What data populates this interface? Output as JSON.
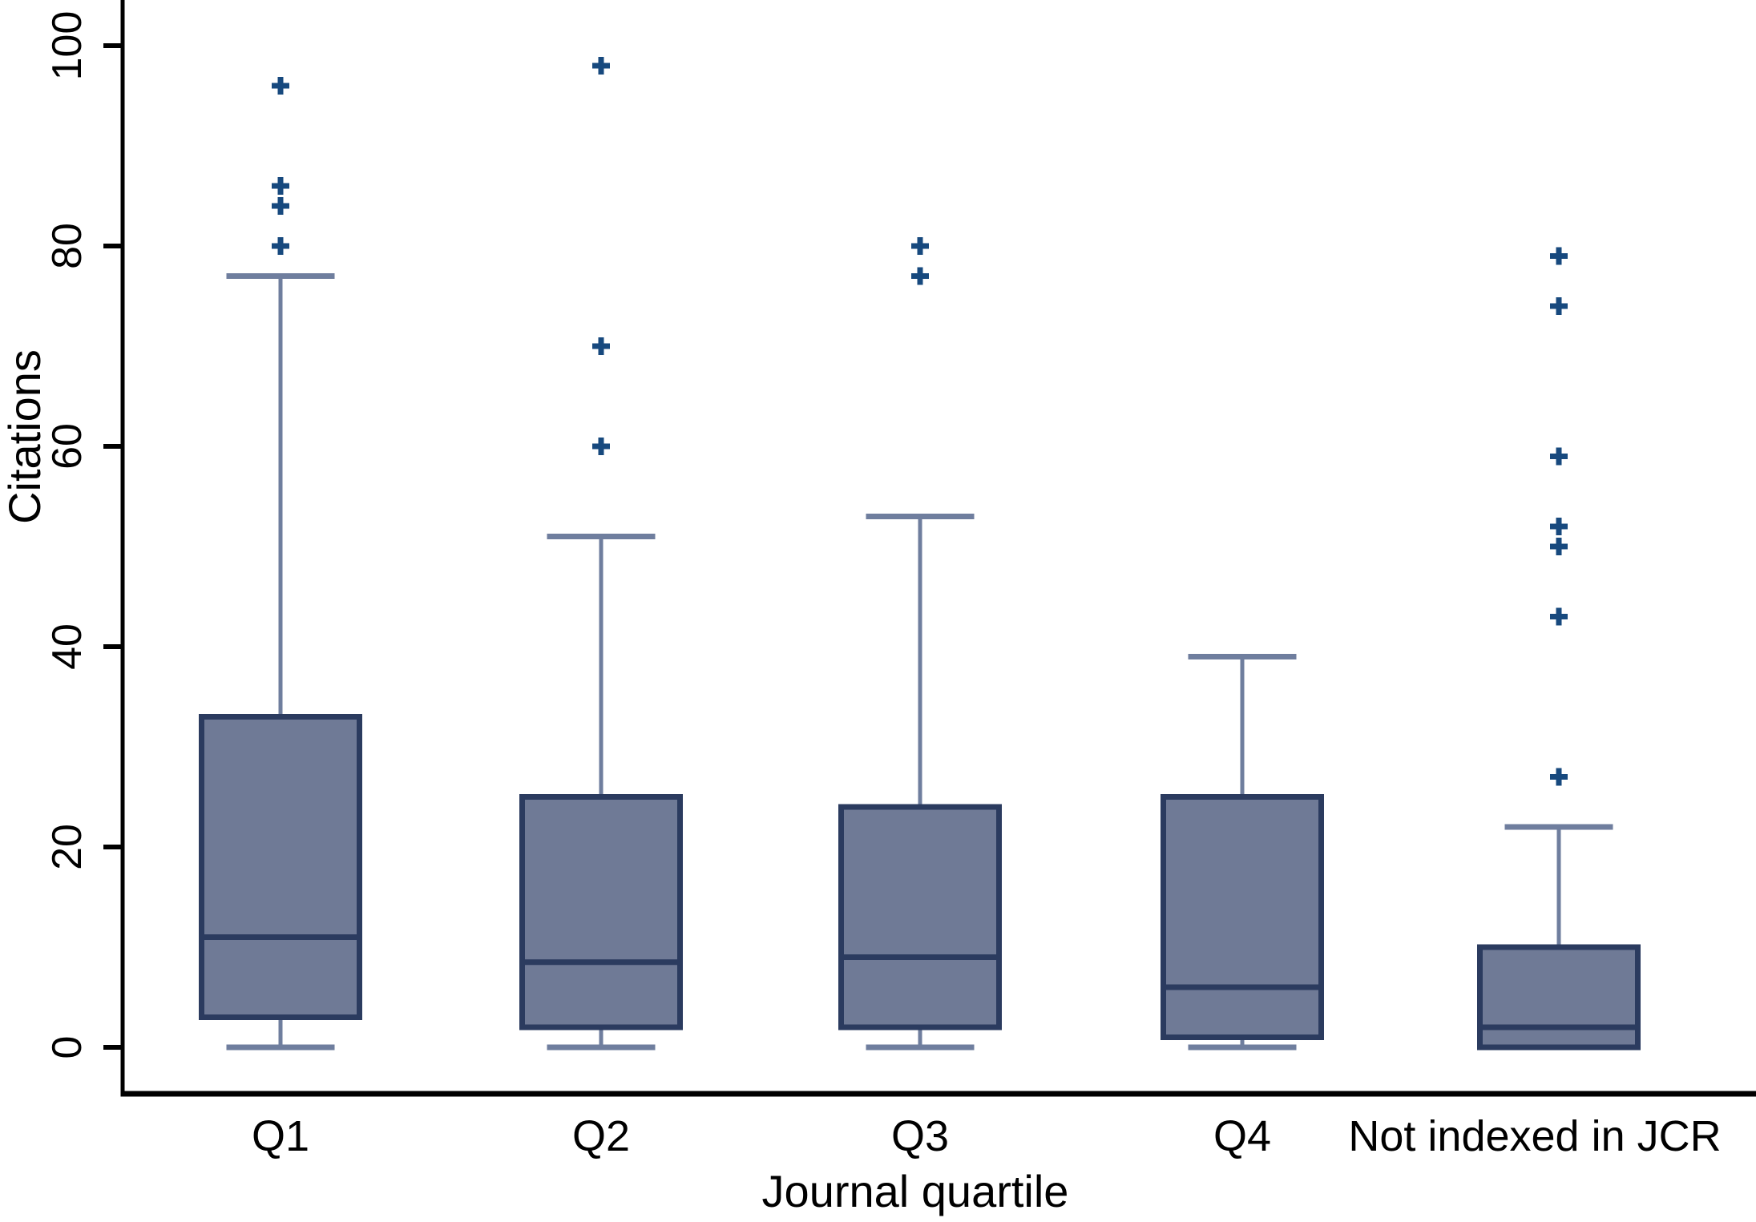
{
  "chart_data": {
    "type": "boxplot",
    "title": "",
    "xlabel": "Journal quartile",
    "ylabel": "Citations",
    "ylim": [
      0,
      100
    ],
    "yticks": [
      0,
      20,
      40,
      60,
      80,
      100
    ],
    "grid": false,
    "legend": "none",
    "marker": "plus",
    "categories": [
      "Q1",
      "Q2",
      "Q3",
      "Q4",
      "Not indexed in JCR"
    ],
    "series": [
      {
        "category": "Q1",
        "slug": "q1",
        "whisker_low": 0,
        "q1": 3,
        "median": 11,
        "q3": 33,
        "whisker_high": 77,
        "outliers": [
          80,
          84,
          86,
          96
        ]
      },
      {
        "category": "Q2",
        "slug": "q2",
        "whisker_low": 0,
        "q1": 2,
        "median": 8.5,
        "q3": 25,
        "whisker_high": 51,
        "outliers": [
          60,
          70,
          98
        ]
      },
      {
        "category": "Q3",
        "slug": "q3",
        "whisker_low": 0,
        "q1": 2,
        "median": 9,
        "q3": 24,
        "whisker_high": 53,
        "outliers": [
          77,
          80
        ]
      },
      {
        "category": "Q4",
        "slug": "q4",
        "whisker_low": 0,
        "q1": 1,
        "median": 6,
        "q3": 25,
        "whisker_high": 39,
        "outliers": []
      },
      {
        "category": "Not indexed in JCR",
        "slug": "not-indexed-in-jcr",
        "whisker_low": 0,
        "q1": 0,
        "median": 2,
        "q3": 10,
        "whisker_high": 22,
        "outliers": [
          27,
          43,
          50,
          52,
          59,
          74,
          79
        ]
      }
    ],
    "colors": {
      "box_fill": "#6F7A96",
      "box_border": "#2B3B5F",
      "whisker": "#6F7E9E",
      "outlier": "#17497E",
      "axis": "#000000"
    }
  }
}
